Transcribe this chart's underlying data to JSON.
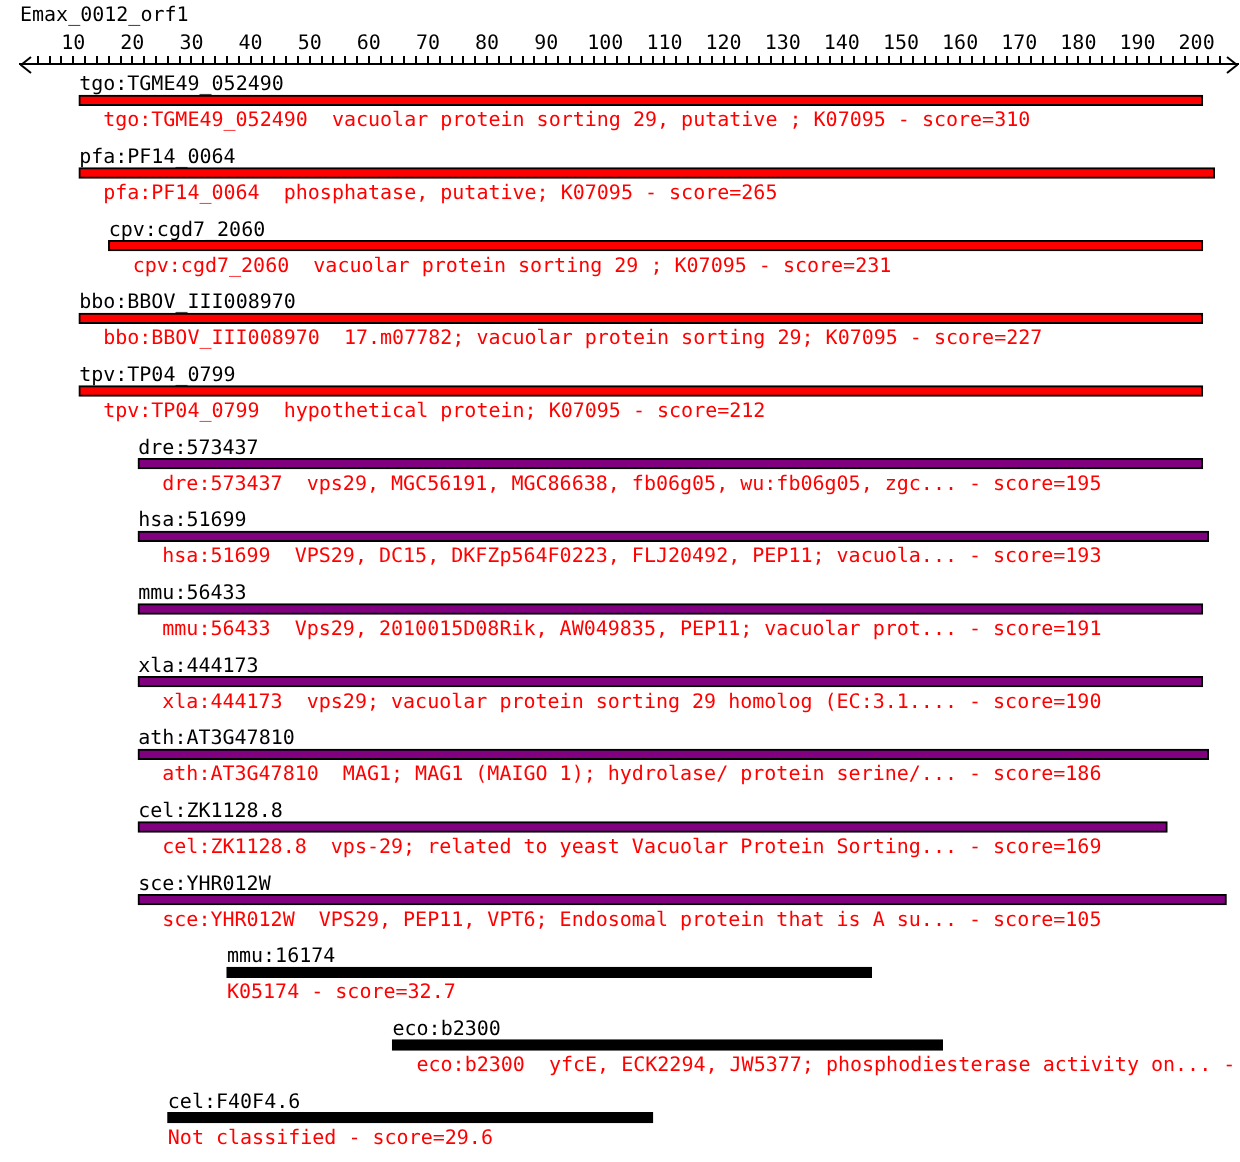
{
  "chart_data": {
    "type": "bar",
    "orientation": "horizontal",
    "title": "Emax_0012_orf1",
    "categories": [
      "tgo:TGME49_052490",
      "pfa:PF14_0064",
      "cpv:cgd7_2060",
      "bbo:BBOV_III008970",
      "tpv:TP04_0799",
      "dre:573437",
      "hsa:51699",
      "mmu:56433",
      "xla:444173",
      "ath:AT3G47810",
      "cel:ZK1128.8",
      "sce:YHR012W",
      "mmu:16174",
      "eco:b2300",
      "cel:F40F4.6"
    ],
    "base": [
      11,
      11,
      16,
      11,
      11,
      21,
      21,
      21,
      21,
      21,
      21,
      21,
      36,
      64,
      26
    ],
    "values": [
      190,
      192,
      185,
      190,
      190,
      180,
      181,
      180,
      180,
      181,
      174,
      184,
      109,
      93,
      82
    ],
    "colors": [
      "#ff0000",
      "#ff0000",
      "#ff0000",
      "#ff0000",
      "#ff0000",
      "#800080",
      "#800080",
      "#800080",
      "#800080",
      "#800080",
      "#800080",
      "#800080",
      "#000000",
      "#000000",
      "#000000"
    ],
    "xlim": [
      1,
      207
    ],
    "xticks": [
      {
        "value": 4,
        "label": null
      },
      {
        "value": 6,
        "label": null
      },
      {
        "value": 8,
        "label": null
      },
      10,
      {
        "value": 12,
        "label": null
      },
      {
        "value": 14,
        "label": null
      },
      {
        "value": 16,
        "label": null
      },
      {
        "value": 18,
        "label": null
      },
      20,
      {
        "value": 22,
        "label": null
      },
      {
        "value": 24,
        "label": null
      },
      {
        "value": 26,
        "label": null
      },
      {
        "value": 28,
        "label": null
      },
      30,
      {
        "value": 32,
        "label": null
      },
      {
        "value": 34,
        "label": null
      },
      {
        "value": 36,
        "label": null
      },
      {
        "value": 38,
        "label": null
      },
      40,
      {
        "value": 42,
        "label": null
      },
      {
        "value": 44,
        "label": null
      },
      {
        "value": 46,
        "label": null
      },
      {
        "value": 48,
        "label": null
      },
      50,
      {
        "value": 52,
        "label": null
      },
      {
        "value": 54,
        "label": null
      },
      {
        "value": 56,
        "label": null
      },
      {
        "value": 58,
        "label": null
      },
      60,
      {
        "value": 62,
        "label": null
      },
      {
        "value": 64,
        "label": null
      },
      {
        "value": 66,
        "label": null
      },
      {
        "value": 68,
        "label": null
      },
      70,
      {
        "value": 72,
        "label": null
      },
      {
        "value": 74,
        "label": null
      },
      {
        "value": 76,
        "label": null
      },
      {
        "value": 78,
        "label": null
      },
      80,
      {
        "value": 82,
        "label": null
      },
      {
        "value": 84,
        "label": null
      },
      {
        "value": 86,
        "label": null
      },
      {
        "value": 88,
        "label": null
      },
      90,
      {
        "value": 92,
        "label": null
      },
      {
        "value": 94,
        "label": null
      },
      {
        "value": 96,
        "label": null
      },
      {
        "value": 98,
        "label": null
      },
      100,
      {
        "value": 102,
        "label": null
      },
      {
        "value": 104,
        "label": null
      },
      {
        "value": 106,
        "label": null
      },
      {
        "value": 108,
        "label": null
      },
      110,
      {
        "value": 112,
        "label": null
      },
      {
        "value": 114,
        "label": null
      },
      {
        "value": 116,
        "label": null
      },
      {
        "value": 118,
        "label": null
      },
      120,
      {
        "value": 122,
        "label": null
      },
      {
        "value": 124,
        "label": null
      },
      {
        "value": 126,
        "label": null
      },
      {
        "value": 128,
        "label": null
      },
      130,
      {
        "value": 132,
        "label": null
      },
      {
        "value": 134,
        "label": null
      },
      {
        "value": 136,
        "label": null
      },
      {
        "value": 138,
        "label": null
      },
      140,
      {
        "value": 142,
        "label": null
      },
      {
        "value": 144,
        "label": null
      },
      {
        "value": 146,
        "label": null
      },
      {
        "value": 148,
        "label": null
      },
      150,
      {
        "value": 152,
        "label": null
      },
      {
        "value": 154,
        "label": null
      },
      {
        "value": 156,
        "label": null
      },
      {
        "value": 158,
        "label": null
      },
      160,
      {
        "value": 162,
        "label": null
      },
      {
        "value": 164,
        "label": null
      },
      {
        "value": 166,
        "label": null
      },
      {
        "value": 168,
        "label": null
      },
      170,
      {
        "value": 172,
        "label": null
      },
      {
        "value": 174,
        "label": null
      },
      {
        "value": 176,
        "label": null
      },
      {
        "value": 178,
        "label": null
      },
      180,
      {
        "value": 182,
        "label": null
      },
      {
        "value": 184,
        "label": null
      },
      {
        "value": 186,
        "label": null
      },
      {
        "value": 188,
        "label": null
      },
      190,
      {
        "value": 192,
        "label": null
      },
      {
        "value": 194,
        "label": null
      },
      {
        "value": 196,
        "label": null
      },
      {
        "value": 198,
        "label": null
      },
      200,
      {
        "value": 202,
        "label": null
      },
      {
        "value": 204,
        "label": null
      }
    ],
    "grid": false,
    "annotations": [
      "tgo:TGME49_052490  vacuolar protein sorting 29, putative ; K07095 - score=310",
      "pfa:PF14_0064  phosphatase, putative; K07095 - score=265",
      "cpv:cgd7_2060  vacuolar protein sorting 29 ; K07095 - score=231",
      "bbo:BBOV_III008970  17.m07782; vacuolar protein sorting 29; K07095 - score=227",
      "tpv:TP04_0799  hypothetical protein; K07095 - score=212",
      "dre:573437  vps29, MGC56191, MGC86638, fb06g05, wu:fb06g05, zgc... - score=195",
      "hsa:51699  VPS29, DC15, DKFZp564F0223, FLJ20492, PEP11; vacuola... - score=193",
      "mmu:56433  Vps29, 2010015D08Rik, AW049835, PEP11; vacuolar prot... - score=191",
      "xla:444173  vps29; vacuolar protein sorting 29 homolog (EC:3.1.... - score=190",
      "ath:AT3G47810  MAG1; MAG1 (MAIGO 1); hydrolase/ protein serine/... - score=186",
      "cel:ZK1128.8  vps-29; related to yeast Vacuolar Protein Sorting... - score=169",
      "sce:YHR012W  VPS29, PEP11, VPT6; Endosomal protein that is A su... - score=105",
      "K05174 - score=32.7",
      "eco:b2300  yfcE, ECK2294, JW5377; phosphodiesterase activity on... -",
      "Not classified - score=29.6"
    ]
  }
}
